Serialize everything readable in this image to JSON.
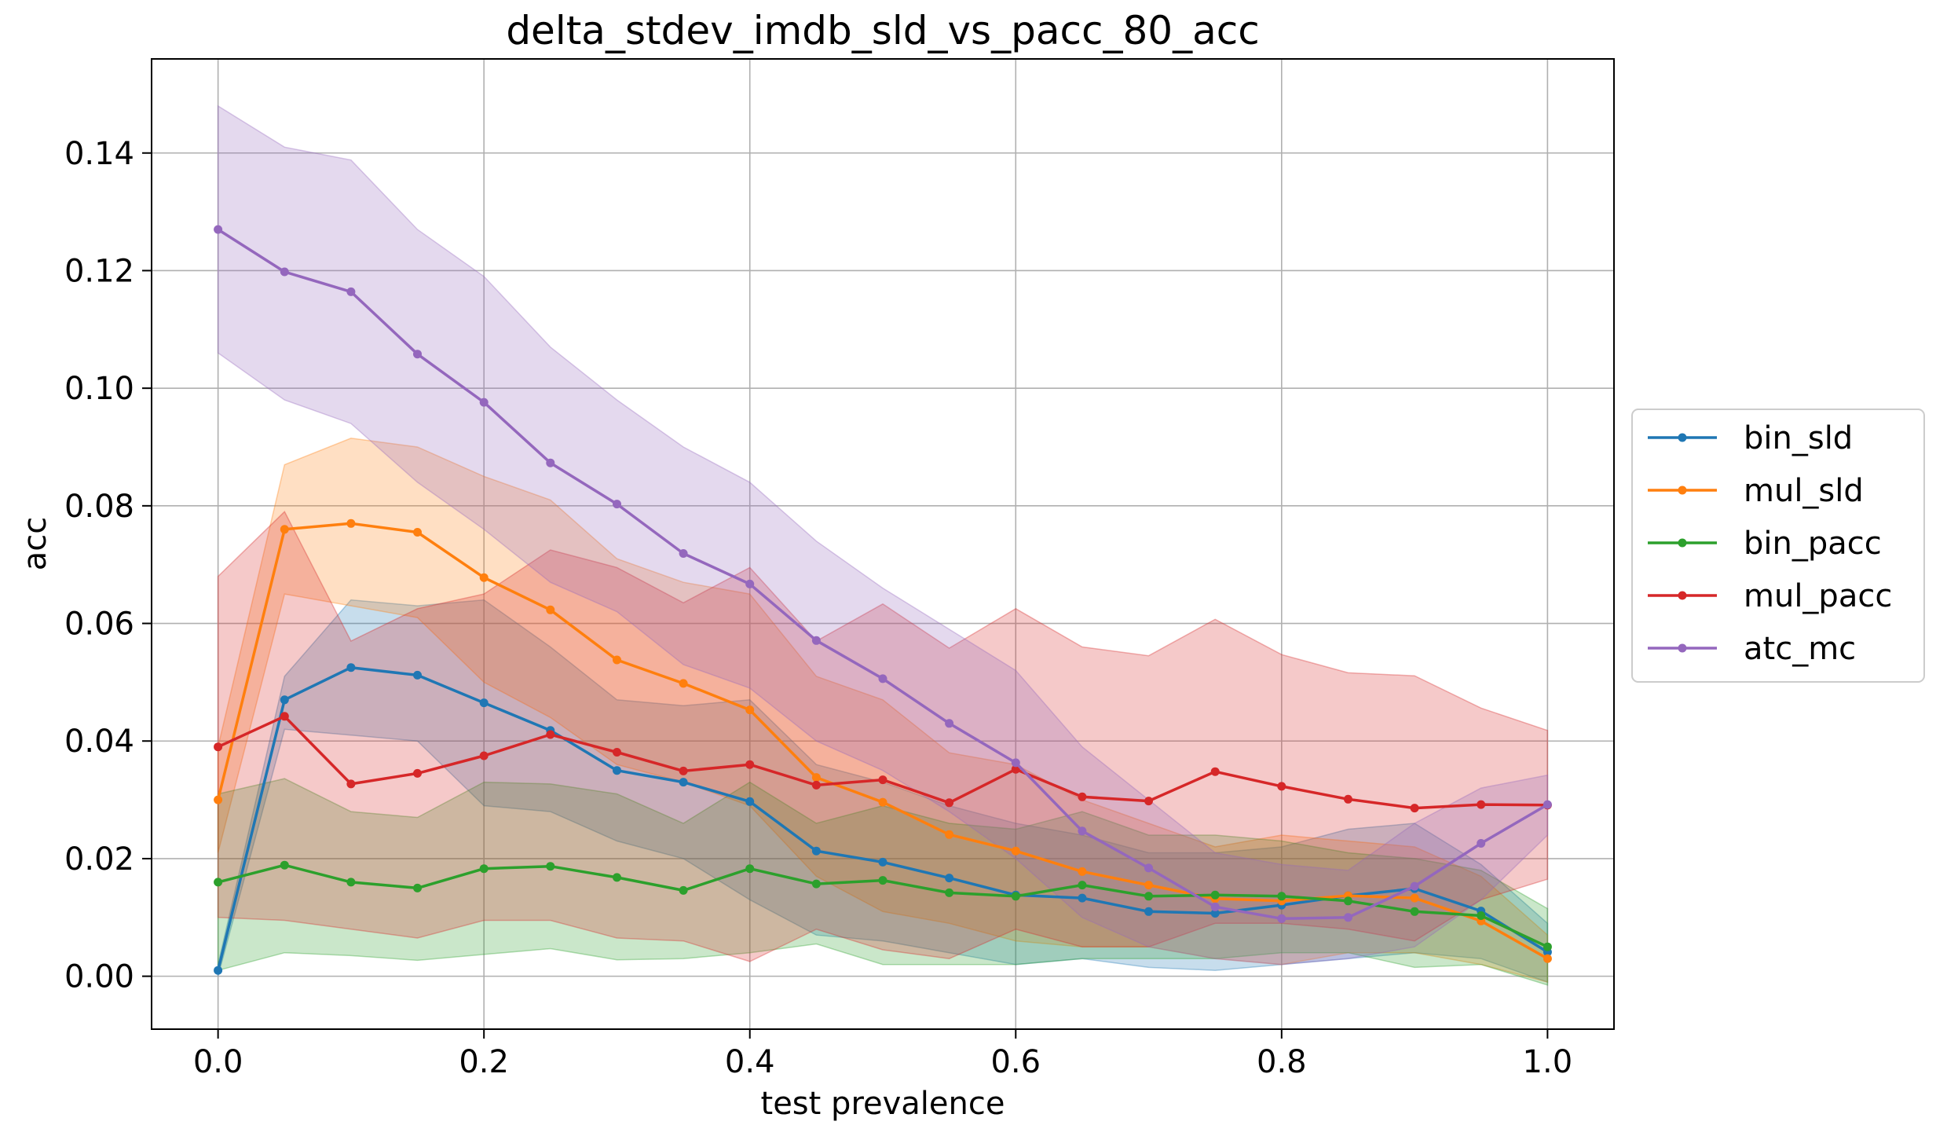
{
  "chart_data": {
    "type": "line",
    "title": "delta_stdev_imdb_sld_vs_pacc_80_acc",
    "xlabel": "test prevalence",
    "ylabel": "acc",
    "xlim": [
      -0.05,
      1.05
    ],
    "ylim": [
      -0.009,
      0.156
    ],
    "xticks": [
      0.0,
      0.2,
      0.4,
      0.6,
      0.8,
      1.0
    ],
    "xtick_labels": [
      "0.0",
      "0.2",
      "0.4",
      "0.6",
      "0.8",
      "1.0"
    ],
    "yticks": [
      0.0,
      0.02,
      0.04,
      0.06,
      0.08,
      0.1,
      0.12,
      0.14
    ],
    "ytick_labels": [
      "0.00",
      "0.02",
      "0.04",
      "0.06",
      "0.08",
      "0.10",
      "0.12",
      "0.14"
    ],
    "grid": true,
    "legend_position": "center right, outside plot",
    "x": [
      0.0,
      0.05,
      0.1,
      0.15,
      0.2,
      0.25,
      0.3,
      0.35,
      0.4,
      0.45,
      0.5,
      0.55,
      0.6,
      0.65,
      0.7,
      0.75,
      0.8,
      0.85,
      0.9,
      0.95,
      1.0
    ],
    "series": [
      {
        "name": "bin_sld",
        "color": "#1f77b4",
        "values": [
          0.001,
          0.047,
          0.0525,
          0.0512,
          0.0465,
          0.0418,
          0.035,
          0.033,
          0.0297,
          0.0213,
          0.0194,
          0.0167,
          0.0138,
          0.0133,
          0.011,
          0.0107,
          0.0121,
          0.0137,
          0.0149,
          0.0111,
          0.0041
        ],
        "lower": [
          0.0,
          0.042,
          0.041,
          0.04,
          0.029,
          0.028,
          0.023,
          0.02,
          0.013,
          0.007,
          0.006,
          0.004,
          0.002,
          0.003,
          0.0015,
          0.001,
          0.002,
          0.003,
          0.004,
          0.003,
          -0.001
        ],
        "upper": [
          0.002,
          0.051,
          0.064,
          0.063,
          0.064,
          0.056,
          0.047,
          0.046,
          0.047,
          0.036,
          0.033,
          0.029,
          0.026,
          0.024,
          0.021,
          0.021,
          0.022,
          0.025,
          0.026,
          0.019,
          0.009
        ]
      },
      {
        "name": "mul_sld",
        "color": "#ff7f0e",
        "values": [
          0.03,
          0.076,
          0.077,
          0.0755,
          0.0678,
          0.0623,
          0.0538,
          0.0498,
          0.0453,
          0.0338,
          0.0296,
          0.0241,
          0.0213,
          0.0178,
          0.0155,
          0.0132,
          0.0128,
          0.0137,
          0.0133,
          0.0094,
          0.003
        ],
        "lower": [
          0.021,
          0.065,
          0.063,
          0.061,
          0.05,
          0.044,
          0.036,
          0.033,
          0.029,
          0.017,
          0.011,
          0.009,
          0.006,
          0.005,
          0.005,
          0.003,
          0.002,
          0.004,
          0.004,
          0.002,
          -0.001
        ],
        "upper": [
          0.039,
          0.087,
          0.0915,
          0.09,
          0.085,
          0.081,
          0.071,
          0.067,
          0.065,
          0.051,
          0.047,
          0.038,
          0.036,
          0.03,
          0.026,
          0.022,
          0.024,
          0.023,
          0.022,
          0.017,
          0.007
        ]
      },
      {
        "name": "bin_pacc",
        "color": "#2ca02c",
        "values": [
          0.016,
          0.0189,
          0.016,
          0.015,
          0.0183,
          0.0187,
          0.0168,
          0.0146,
          0.0183,
          0.0157,
          0.0163,
          0.0142,
          0.0136,
          0.0155,
          0.0136,
          0.0138,
          0.0136,
          0.0128,
          0.011,
          0.0103,
          0.005
        ],
        "lower": [
          0.001,
          0.004,
          0.0035,
          0.0027,
          0.0037,
          0.0047,
          0.0028,
          0.003,
          0.004,
          0.0055,
          0.002,
          0.002,
          0.002,
          0.003,
          0.003,
          0.003,
          0.004,
          0.004,
          0.0015,
          0.002,
          -0.0015
        ],
        "upper": [
          0.031,
          0.0336,
          0.028,
          0.027,
          0.033,
          0.0327,
          0.031,
          0.026,
          0.033,
          0.026,
          0.029,
          0.026,
          0.025,
          0.028,
          0.024,
          0.024,
          0.023,
          0.021,
          0.02,
          0.018,
          0.0115
        ]
      },
      {
        "name": "mul_pacc",
        "color": "#d62728",
        "values": [
          0.039,
          0.0442,
          0.0327,
          0.0345,
          0.0375,
          0.0411,
          0.0381,
          0.0349,
          0.036,
          0.0325,
          0.0334,
          0.0295,
          0.0352,
          0.0305,
          0.0298,
          0.0348,
          0.0323,
          0.0301,
          0.0286,
          0.0292,
          0.0291
        ],
        "lower": [
          0.01,
          0.0095,
          0.008,
          0.0065,
          0.0095,
          0.0095,
          0.0065,
          0.006,
          0.0025,
          0.008,
          0.0045,
          0.003,
          0.008,
          0.005,
          0.005,
          0.009,
          0.009,
          0.008,
          0.006,
          0.013,
          0.0165
        ],
        "upper": [
          0.068,
          0.079,
          0.057,
          0.0625,
          0.065,
          0.0725,
          0.0695,
          0.0635,
          0.0695,
          0.057,
          0.0633,
          0.0558,
          0.0625,
          0.056,
          0.0545,
          0.0607,
          0.0547,
          0.0516,
          0.0511,
          0.0456,
          0.0418
        ]
      },
      {
        "name": "atc_mc",
        "color": "#9467bd",
        "values": [
          0.127,
          0.1198,
          0.1164,
          0.1058,
          0.0976,
          0.0873,
          0.0803,
          0.0719,
          0.0667,
          0.0571,
          0.0506,
          0.043,
          0.0363,
          0.0247,
          0.0184,
          0.0118,
          0.0098,
          0.01,
          0.0153,
          0.0226,
          0.0292
        ],
        "lower": [
          0.106,
          0.098,
          0.094,
          0.084,
          0.076,
          0.067,
          0.062,
          0.053,
          0.049,
          0.04,
          0.035,
          0.028,
          0.02,
          0.01,
          0.005,
          0.003,
          0.002,
          0.003,
          0.005,
          0.013,
          0.024
        ],
        "upper": [
          0.148,
          0.141,
          0.1388,
          0.127,
          0.119,
          0.107,
          0.098,
          0.09,
          0.084,
          0.074,
          0.066,
          0.059,
          0.052,
          0.039,
          0.03,
          0.021,
          0.019,
          0.018,
          0.026,
          0.032,
          0.0342
        ]
      }
    ]
  }
}
